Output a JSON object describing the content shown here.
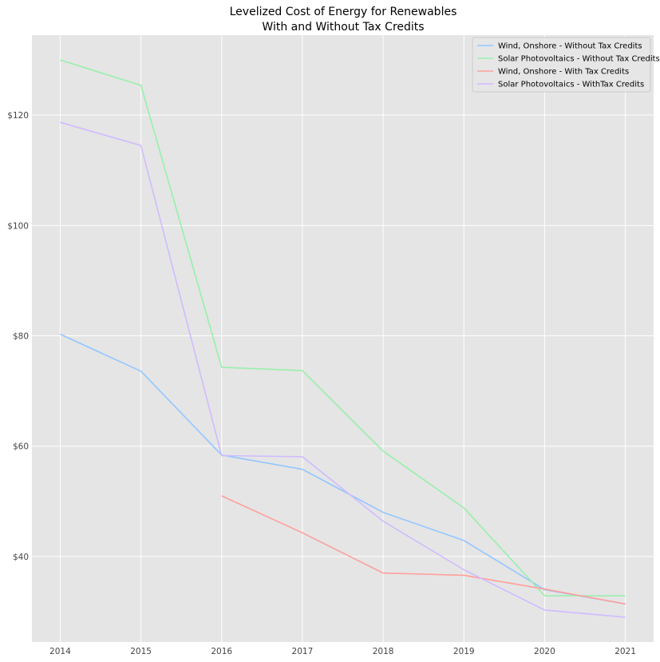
{
  "chart_data": {
    "type": "line",
    "title_line1": "Levelized Cost of Energy for Renewables",
    "title_line2": "With and Without Tax Credits",
    "xlabel": "",
    "ylabel": "",
    "x": [
      2014,
      2015,
      2016,
      2017,
      2018,
      2019,
      2020,
      2021
    ],
    "x_tick_labels": [
      "2014",
      "2015",
      "2016",
      "2017",
      "2018",
      "2019",
      "2020",
      "2021"
    ],
    "xlim": [
      2013.65,
      2021.35
    ],
    "y_ticks": [
      40,
      60,
      80,
      100,
      120
    ],
    "y_tick_labels": [
      "$40",
      "$60",
      "$80",
      "$100",
      "$120"
    ],
    "ylim": [
      24.5,
      134.5
    ],
    "grid": true,
    "legend_position": "top-right",
    "series": [
      {
        "name": "Wind, Onshore - Without Tax Credits",
        "color": "#92c6ff",
        "values": [
          80.3,
          73.6,
          58.4,
          55.8,
          48.0,
          42.9,
          34.0,
          31.4
        ]
      },
      {
        "name": "Solar Photovoltaics - Without Tax Credits",
        "color": "#97f0aa",
        "values": [
          130.0,
          125.4,
          74.3,
          73.7,
          59.1,
          48.8,
          32.9,
          32.9
        ]
      },
      {
        "name": "Wind, Onshore - With Tax Credits",
        "color": "#ff9f9a",
        "values": [
          null,
          null,
          51.0,
          44.3,
          37.0,
          36.6,
          34.1,
          31.4
        ]
      },
      {
        "name": "Solar Photovoltaics - WithTax Credits",
        "color": "#d0bbff",
        "values": [
          118.7,
          114.5,
          58.3,
          58.1,
          46.4,
          37.6,
          30.3,
          29.0
        ]
      }
    ]
  }
}
